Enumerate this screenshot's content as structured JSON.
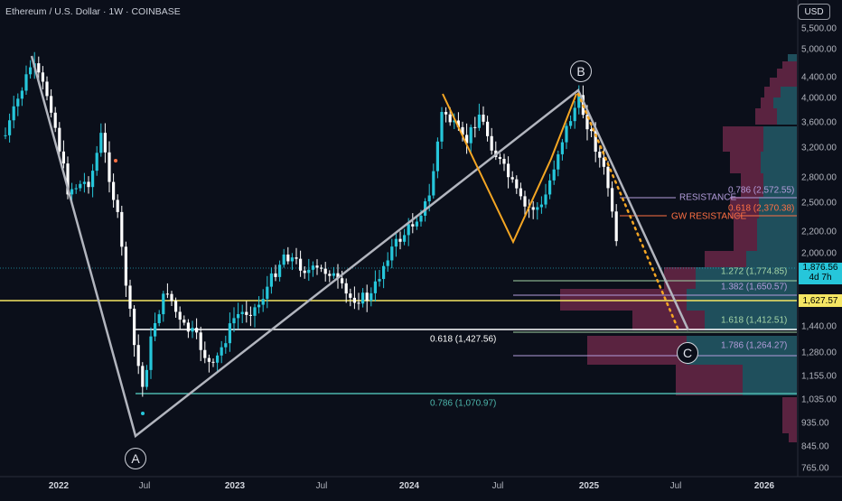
{
  "header": {
    "title": "Ethereum / U.S. Dollar · 1W · COINBASE"
  },
  "currency_button": "USD",
  "price_axis": [
    "5,500.00",
    "5,000.00",
    "4,400.00",
    "4,000.00",
    "3,600.00",
    "3,200.00",
    "2,800.00",
    "2,500.00",
    "2,200.00",
    "2,000.00",
    "1,440.00",
    "1,280.00",
    "1,155.00",
    "1,035.00",
    "935.00",
    "845.00",
    "765.00"
  ],
  "time_axis": [
    {
      "label": "2022",
      "bold": true
    },
    {
      "label": "Jul",
      "bold": false
    },
    {
      "label": "2023",
      "bold": true
    },
    {
      "label": "Jul",
      "bold": false
    },
    {
      "label": "2024",
      "bold": true
    },
    {
      "label": "Jul",
      "bold": false
    },
    {
      "label": "2025",
      "bold": true
    },
    {
      "label": "Jul",
      "bold": false
    },
    {
      "label": "2026",
      "bold": true
    }
  ],
  "levels": {
    "fib_0786_upper": "0.786 (2,572.55)",
    "resistance": "RESISTANCE",
    "fib_0618_upper": "0.618 (2,370.38)",
    "gw_resistance": "GW RESISTANCE",
    "ext_1272": "1.272 (1,774.85)",
    "ext_1382": "1.382 (1,650.57)",
    "ext_1618": "1.618 (1,412.51)",
    "ext_1786": "1.786 (1,264.27)",
    "fib_0618_lower": "0.618 (1,427.56)",
    "fib_0786_lower": "0.786 (1,070.97)"
  },
  "price_tags": {
    "last_price": "1,876.56",
    "countdown": "4d 7h",
    "yellow_line": "1,627.57"
  },
  "waves": {
    "a": "A",
    "b": "B",
    "c": "C"
  },
  "colors": {
    "background": "#0b0f1a",
    "candle_up": "#26c6da",
    "candle_down": "#ffffff",
    "wave_line": "#b2b5be",
    "pattern_orange": "#f5a623",
    "yellow_line": "#f5e663",
    "white_line": "#ffffff",
    "purple_line": "#b39ddb",
    "teal_line": "#4db6ac",
    "gw_orange": "#ff7043",
    "profile_up": "#1f4f5c",
    "profile_down": "#5a2340"
  }
}
